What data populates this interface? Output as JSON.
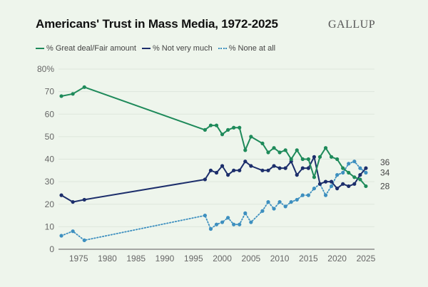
{
  "header": {
    "title": "Americans' Trust in Mass Media, 1972-2025",
    "logo": "GALLUP"
  },
  "colors": {
    "great": "#1e8a5a",
    "not": "#1c2e6b",
    "none": "#3d8fbf",
    "grid": "#dde6dc",
    "axis": "#777777"
  },
  "chart_data": {
    "type": "line",
    "title": "Americans' Trust in Mass Media, 1972-2025",
    "xlabel": "",
    "ylabel": "",
    "xlim": [
      1972,
      2025
    ],
    "ylim": [
      0,
      80
    ],
    "grid": true,
    "legend_position": "top-left",
    "x_ticks": [
      1975,
      1980,
      1985,
      1990,
      1995,
      2000,
      2005,
      2010,
      2015,
      2020,
      2025
    ],
    "y_ticks": [
      0,
      10,
      20,
      30,
      40,
      50,
      60,
      70,
      80
    ],
    "y_tick_labels": [
      "0",
      "10",
      "20",
      "30",
      "40",
      "50",
      "60",
      "70",
      "80%"
    ],
    "x": [
      1972,
      1974,
      1976,
      1997,
      1998,
      1999,
      2000,
      2001,
      2002,
      2003,
      2004,
      2005,
      2007,
      2008,
      2009,
      2010,
      2011,
      2012,
      2013,
      2014,
      2015,
      2016,
      2017,
      2018,
      2019,
      2020,
      2021,
      2022,
      2023,
      2024,
      2025
    ],
    "series": [
      {
        "name": "% Great deal/Fair amount",
        "key": "great",
        "style": "solid",
        "values": [
          68,
          69,
          72,
          53,
          55,
          55,
          51,
          53,
          54,
          54,
          44,
          50,
          47,
          43,
          45,
          43,
          44,
          40,
          44,
          40,
          40,
          32,
          41,
          45,
          41,
          40,
          36,
          34,
          32,
          31,
          28
        ],
        "end_label": "28"
      },
      {
        "name": "% Not very much",
        "key": "not",
        "style": "solid",
        "values": [
          24,
          21,
          22,
          31,
          35,
          34,
          37,
          33,
          35,
          35,
          39,
          37,
          35,
          35,
          37,
          36,
          36,
          39,
          33,
          36,
          36,
          41,
          29,
          30,
          30,
          27,
          29,
          28,
          29,
          33,
          36
        ],
        "end_label": "36"
      },
      {
        "name": "% None at all",
        "key": "none",
        "style": "dotted",
        "values": [
          6,
          8,
          4,
          15,
          9,
          11,
          12,
          14,
          11,
          11,
          16,
          12,
          17,
          21,
          18,
          21,
          19,
          21,
          22,
          24,
          24,
          27,
          29,
          24,
          28,
          33,
          34,
          38,
          39,
          36,
          34
        ],
        "end_label": "34"
      }
    ]
  }
}
